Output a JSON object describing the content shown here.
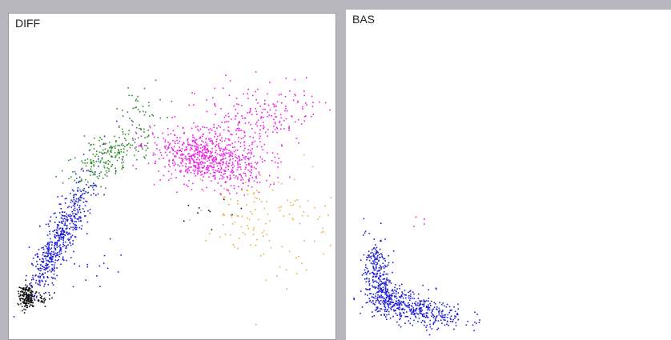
{
  "chart_data": [
    {
      "type": "scatter",
      "title": "DIFF",
      "xlim": [
        0,
        410
      ],
      "ylim": [
        0,
        409
      ],
      "grid": false,
      "series": [
        {
          "color": "#101010",
          "clusters": [
            {
              "cx": 22,
              "cy": 355,
              "sx": 5,
              "sy": 8,
              "n": 170,
              "rot": 0
            },
            {
              "cx": 40,
              "cy": 358,
              "sx": 6,
              "sy": 4,
              "n": 30,
              "rot": 0
            },
            {
              "cx": 255,
              "cy": 248,
              "sx": 20,
              "sy": 10,
              "n": 10,
              "rot": 0
            }
          ]
        },
        {
          "color": "#1e1ed8",
          "clusters": [
            {
              "cx": 68,
              "cy": 272,
              "sx": 10,
              "sy": 38,
              "n": 480,
              "rot": 28
            },
            {
              "cx": 45,
              "cy": 320,
              "sx": 7,
              "sy": 16,
              "n": 80,
              "rot": 24
            },
            {
              "cx": 105,
              "cy": 315,
              "sx": 20,
              "sy": 18,
              "n": 14,
              "rot": 0
            }
          ]
        },
        {
          "color": "#2e8b2e",
          "clusters": [
            {
              "cx": 128,
              "cy": 176,
              "sx": 13,
              "sy": 32,
              "n": 240,
              "rot": 52
            },
            {
              "cx": 165,
              "cy": 115,
              "sx": 12,
              "sy": 14,
              "n": 25,
              "rot": 40
            }
          ]
        },
        {
          "color": "#ee1ee8",
          "clusters": [
            {
              "cx": 243,
              "cy": 178,
              "sx": 33,
              "sy": 15,
              "n": 620,
              "rot": 8
            },
            {
              "cx": 310,
              "cy": 135,
              "sx": 42,
              "sy": 24,
              "n": 260,
              "rot": -12
            },
            {
              "cx": 278,
              "cy": 205,
              "sx": 28,
              "sy": 12,
              "n": 80,
              "rot": 0
            }
          ]
        },
        {
          "color": "#e8b040",
          "clusters": [
            {
              "cx": 300,
              "cy": 250,
              "sx": 30,
              "sy": 26,
              "n": 90,
              "rot": 0
            },
            {
              "cx": 365,
              "cy": 265,
              "sx": 28,
              "sy": 35,
              "n": 45,
              "rot": 0
            }
          ]
        }
      ]
    },
    {
      "type": "scatter",
      "title": "BAS",
      "xlim": [
        0,
        406
      ],
      "ylim": [
        0,
        413
      ],
      "grid": false,
      "series": [
        {
          "color": "#1e1ed8",
          "clusters": [
            {
              "cx": 38,
              "cy": 330,
              "sx": 8,
              "sy": 24,
              "n": 260,
              "rot": -12
            },
            {
              "cx": 85,
              "cy": 373,
              "sx": 32,
              "sy": 10,
              "n": 420,
              "rot": 14
            },
            {
              "cx": 55,
              "cy": 360,
              "sx": 12,
              "sy": 8,
              "n": 80,
              "rot": 0
            }
          ]
        },
        {
          "color": "#ee1ee8",
          "clusters": [
            {
              "cx": 90,
              "cy": 262,
              "sx": 8,
              "sy": 5,
              "n": 4,
              "rot": 0
            }
          ]
        }
      ]
    }
  ]
}
